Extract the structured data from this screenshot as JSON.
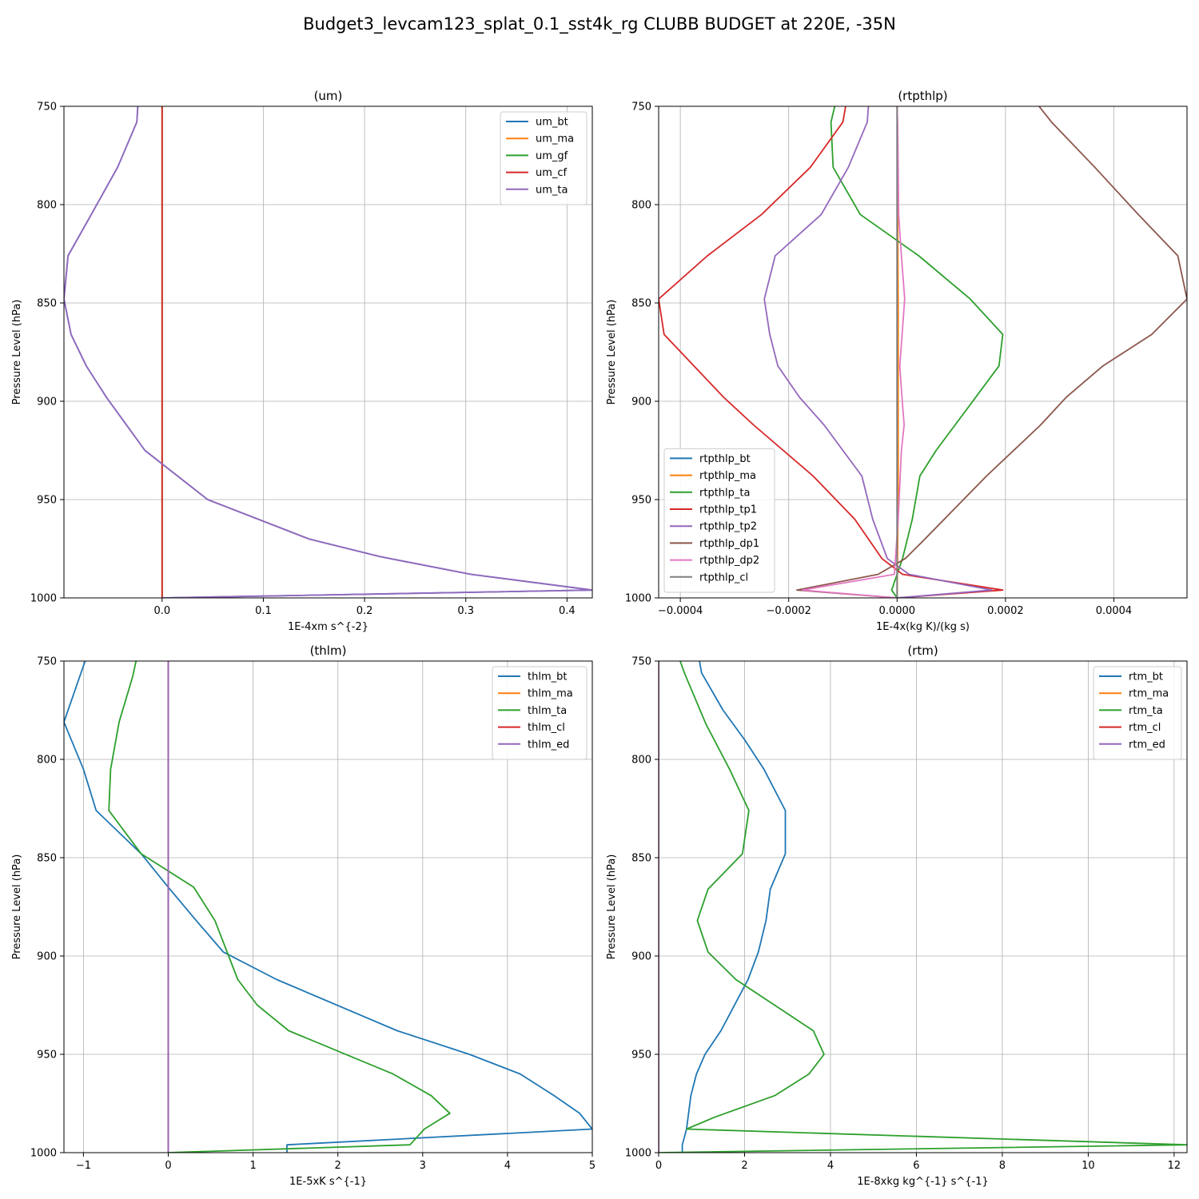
{
  "figure": {
    "title": "Budget3_levcam123_splat_0.1_sst4k_rg CLUBB BUDGET at 220E, -35N"
  },
  "chart_data": [
    {
      "type": "line",
      "title": "(um)",
      "xlabel": "1E-4xm s^{-2}",
      "ylabel": "Pressure Level (hPa)",
      "xlim": [
        -0.097,
        0.425
      ],
      "ylim": [
        1000,
        750
      ],
      "xticks": [
        0.0,
        0.1,
        0.2,
        0.3,
        0.4
      ],
      "xtick_labels": [
        "0.0",
        "0.1",
        "0.2",
        "0.3",
        "0.4"
      ],
      "yticks": [
        750,
        800,
        850,
        900,
        950,
        1000
      ],
      "ytick_labels": [
        "750",
        "800",
        "850",
        "900",
        "950",
        "1000"
      ],
      "grid": true,
      "legend_position": "upper-right",
      "series": [
        {
          "name": "um_bt",
          "color": "#1f77b4",
          "x": [
            0,
            0.425,
            0.305,
            0.215,
            0.145,
            0.045,
            -0.017,
            -0.055,
            -0.075,
            -0.09,
            -0.097,
            -0.093,
            -0.07,
            -0.044,
            -0.025,
            -0.024
          ],
          "y": [
            1000,
            996,
            988,
            979,
            970,
            950,
            925,
            898,
            882,
            866,
            848,
            826,
            805,
            781,
            758,
            750
          ]
        },
        {
          "name": "um_ma",
          "color": "#ff7f0e",
          "x": [
            0,
            0,
            0
          ],
          "y": [
            1000,
            875,
            750
          ]
        },
        {
          "name": "um_gf",
          "color": "#2ca02c",
          "x": [
            0,
            0,
            0
          ],
          "y": [
            1000,
            875,
            750
          ]
        },
        {
          "name": "um_cf",
          "color": "#d62728",
          "x": [
            0,
            0,
            0
          ],
          "y": [
            1000,
            875,
            750
          ]
        },
        {
          "name": "um_ta",
          "color": "#9467bd",
          "x": [
            0,
            0.425,
            0.305,
            0.215,
            0.145,
            0.045,
            -0.017,
            -0.055,
            -0.075,
            -0.09,
            -0.097,
            -0.093,
            -0.07,
            -0.044,
            -0.025,
            -0.024
          ],
          "y": [
            1000,
            996,
            988,
            979,
            970,
            950,
            925,
            898,
            882,
            866,
            848,
            826,
            805,
            781,
            758,
            750
          ]
        }
      ]
    },
    {
      "type": "line",
      "title": "(rtpthlp)",
      "xlabel": "1E-4x(kg K)/(kg s)",
      "ylabel": "Pressure Level (hPa)",
      "xlim": [
        -0.00044,
        0.000535
      ],
      "ylim": [
        1000,
        750
      ],
      "xticks": [
        -0.0004,
        -0.0002,
        0.0,
        0.0002,
        0.0004
      ],
      "xtick_labels": [
        "−0.0004",
        "−0.0002",
        "0.0000",
        "0.0002",
        "0.0004"
      ],
      "yticks": [
        750,
        800,
        850,
        900,
        950,
        1000
      ],
      "ytick_labels": [
        "750",
        "800",
        "850",
        "900",
        "950",
        "1000"
      ],
      "grid": true,
      "legend_position": "lower-left",
      "series": [
        {
          "name": "rtpthlp_bt",
          "color": "#1f77b4",
          "x": [
            0,
            0,
            0
          ],
          "y": [
            1000,
            875,
            750
          ]
        },
        {
          "name": "rtpthlp_ma",
          "color": "#ff7f0e",
          "x": [
            0,
            2e-06,
            2e-06,
            1e-06,
            0
          ],
          "y": [
            1000,
            950,
            850,
            800,
            750
          ]
        },
        {
          "name": "rtpthlp_ta",
          "color": "#2ca02c",
          "x": [
            0,
            -1e-05,
            1e-05,
            2.8e-05,
            4.2e-05,
            7.2e-05,
            0.000145,
            0.000188,
            0.000195,
            0.000135,
            4e-05,
            -6.8e-05,
            -0.000118,
            -0.000122,
            -0.000115
          ],
          "y": [
            1000,
            996,
            980,
            960,
            938,
            925,
            898,
            882,
            866,
            848,
            826,
            805,
            781,
            758,
            750
          ]
        },
        {
          "name": "rtpthlp_tp1",
          "color": "#d62728",
          "x": [
            0,
            0.000195,
            1e-05,
            -2.8e-05,
            -7.8e-05,
            -0.000155,
            -0.000265,
            -0.00032,
            -0.000375,
            -0.00043,
            -0.00044,
            -0.00035,
            -0.00025,
            -0.00016,
            -0.0001,
            -9.5e-05
          ],
          "y": [
            1000,
            996,
            988,
            980,
            960,
            938,
            912,
            898,
            882,
            866,
            848,
            826,
            805,
            781,
            758,
            750
          ]
        },
        {
          "name": "rtpthlp_tp2",
          "color": "#9467bd",
          "x": [
            0,
            0.000175,
            2.2e-05,
            -1.8e-05,
            -4.5e-05,
            -6.5e-05,
            -0.000135,
            -0.00018,
            -0.00022,
            -0.000235,
            -0.000245,
            -0.000225,
            -0.00014,
            -9e-05,
            -5.5e-05,
            -5.3e-05
          ],
          "y": [
            1000,
            996,
            988,
            980,
            960,
            938,
            912,
            898,
            882,
            866,
            848,
            826,
            805,
            781,
            758,
            750
          ]
        },
        {
          "name": "rtpthlp_dp1",
          "color": "#8b564b",
          "x": [
            0,
            -0.000185,
            -3.5e-05,
            1.5e-05,
            4.8e-05,
            0.000165,
            0.000265,
            0.000312,
            0.00038,
            0.00047,
            0.000535,
            0.000518,
            0.000445,
            0.000365,
            0.000285,
            0.000262
          ],
          "y": [
            1000,
            996,
            988,
            980,
            971,
            938,
            912,
            898,
            882,
            866,
            848,
            826,
            805,
            781,
            758,
            750
          ]
        },
        {
          "name": "rtpthlp_dp2",
          "color": "#e377c2",
          "x": [
            0,
            -0.000175,
            -5e-06,
            2e-06,
            8e-06,
            1.3e-05,
            9e-06,
            5e-06,
            1.4e-05,
            8e-06,
            3e-06,
            2e-06,
            1e-06,
            0
          ],
          "y": [
            1000,
            996,
            988,
            960,
            925,
            912,
            898,
            882,
            848,
            826,
            805,
            781,
            758,
            750
          ]
        },
        {
          "name": "rtpthlp_cl",
          "color": "#7f7f7f",
          "x": [
            0,
            0,
            0
          ],
          "y": [
            1000,
            875,
            750
          ]
        }
      ]
    },
    {
      "type": "line",
      "title": "(thlm)",
      "xlabel": "1E-5xK s^{-1}",
      "ylabel": "Pressure Level (hPa)",
      "xlim": [
        -1.23,
        5.0
      ],
      "ylim": [
        1000,
        750
      ],
      "xticks": [
        -1,
        0,
        1,
        2,
        3,
        4,
        5
      ],
      "xtick_labels": [
        "−1",
        "0",
        "1",
        "2",
        "3",
        "4",
        "5"
      ],
      "yticks": [
        750,
        800,
        850,
        900,
        950,
        1000
      ],
      "ytick_labels": [
        "750",
        "800",
        "850",
        "900",
        "950",
        "1000"
      ],
      "grid": true,
      "legend_position": "upper-right",
      "series": [
        {
          "name": "thlm_bt",
          "color": "#1f77b4",
          "x": [
            1.4,
            1.4,
            5.0,
            4.85,
            4.55,
            4.15,
            3.55,
            2.7,
            1.28,
            0.65,
            0.33,
            0.0,
            -0.32,
            -0.85,
            -1.0,
            -1.23,
            -0.98
          ],
          "y": [
            1000,
            996,
            988,
            980,
            971,
            960,
            950,
            938,
            912,
            898,
            882,
            865,
            848,
            826,
            805,
            781,
            750
          ]
        },
        {
          "name": "thlm_ma",
          "color": "#ff7f0e",
          "x": [
            0,
            0,
            0
          ],
          "y": [
            1000,
            875,
            750
          ]
        },
        {
          "name": "thlm_ta",
          "color": "#2ca02c",
          "x": [
            0,
            2.85,
            3.02,
            3.32,
            3.1,
            2.65,
            1.42,
            1.05,
            0.82,
            0.55,
            0.3,
            -0.32,
            -0.7,
            -0.68,
            -0.58,
            -0.42,
            -0.38
          ],
          "y": [
            1000,
            996,
            988,
            980,
            971,
            960,
            938,
            925,
            912,
            882,
            865,
            848,
            826,
            805,
            781,
            758,
            750
          ]
        },
        {
          "name": "thlm_cl",
          "color": "#d62728",
          "x": [
            0,
            0,
            0
          ],
          "y": [
            1000,
            875,
            750
          ]
        },
        {
          "name": "thlm_ed",
          "color": "#9467bd",
          "x": [
            0,
            0,
            0
          ],
          "y": [
            1000,
            875,
            750
          ]
        }
      ]
    },
    {
      "type": "line",
      "title": "(rtm)",
      "xlabel": "1E-8xkg kg^{-1} s^{-1}",
      "ylabel": "Pressure Level (hPa)",
      "xlim": [
        0,
        12.3
      ],
      "ylim": [
        1000,
        750
      ],
      "xticks": [
        0,
        2,
        4,
        6,
        8,
        10,
        12
      ],
      "xtick_labels": [
        "0",
        "2",
        "4",
        "6",
        "8",
        "10",
        "12"
      ],
      "yticks": [
        750,
        800,
        850,
        900,
        950,
        1000
      ],
      "ytick_labels": [
        "750",
        "800",
        "850",
        "900",
        "950",
        "1000"
      ],
      "grid": true,
      "legend_position": "upper-right",
      "series": [
        {
          "name": "rtm_bt",
          "color": "#1f77b4",
          "x": [
            0.55,
            0.55,
            0.65,
            0.75,
            0.88,
            1.08,
            1.45,
            2.08,
            2.32,
            2.5,
            2.6,
            2.95,
            2.95,
            2.45,
            2.0,
            1.5,
            1.0,
            0.95
          ],
          "y": [
            1000,
            996,
            988,
            971,
            960,
            950,
            938,
            912,
            898,
            882,
            866,
            848,
            826,
            805,
            790,
            775,
            756,
            750
          ]
        },
        {
          "name": "rtm_ma",
          "color": "#ff7f0e",
          "x": [
            0,
            0,
            0
          ],
          "y": [
            1000,
            875,
            750
          ]
        },
        {
          "name": "rtm_ta",
          "color": "#2ca02c",
          "x": [
            0,
            12.3,
            0.65,
            1.3,
            2.7,
            3.5,
            3.85,
            3.6,
            2.7,
            1.8,
            1.15,
            0.9,
            1.15,
            1.95,
            2.1,
            1.65,
            1.1,
            0.6,
            0.5
          ],
          "y": [
            1000,
            996,
            988,
            982,
            971,
            960,
            950,
            938,
            925,
            912,
            898,
            882,
            866,
            848,
            826,
            805,
            782,
            756,
            750
          ]
        },
        {
          "name": "rtm_cl",
          "color": "#d62728",
          "x": [
            0,
            0,
            0
          ],
          "y": [
            1000,
            875,
            750
          ]
        },
        {
          "name": "rtm_ed",
          "color": "#9467bd",
          "x": [
            0,
            0,
            0
          ],
          "y": [
            1000,
            875,
            750
          ]
        }
      ]
    }
  ]
}
